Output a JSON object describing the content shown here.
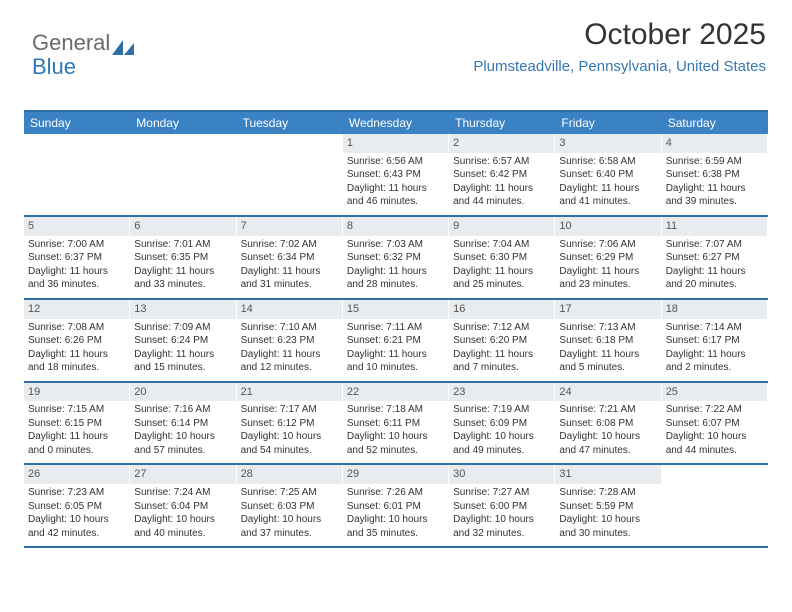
{
  "logo": {
    "text_gray": "General",
    "text_blue": "Blue",
    "icon_color": "#2f6fa8"
  },
  "header": {
    "month_title": "October 2025",
    "location": "Plumsteadville, Pennsylvania, United States"
  },
  "colors": {
    "header_bg": "#3b82c4",
    "border": "#2f6fa8",
    "day_number_bg": "#e9ecef",
    "text": "#333333",
    "location_text": "#3778b6"
  },
  "day_names": [
    "Sunday",
    "Monday",
    "Tuesday",
    "Wednesday",
    "Thursday",
    "Friday",
    "Saturday"
  ],
  "weeks": [
    [
      {
        "day": "",
        "sunrise": "",
        "sunset": "",
        "daylight": ""
      },
      {
        "day": "",
        "sunrise": "",
        "sunset": "",
        "daylight": ""
      },
      {
        "day": "",
        "sunrise": "",
        "sunset": "",
        "daylight": ""
      },
      {
        "day": "1",
        "sunrise": "Sunrise: 6:56 AM",
        "sunset": "Sunset: 6:43 PM",
        "daylight": "Daylight: 11 hours and 46 minutes."
      },
      {
        "day": "2",
        "sunrise": "Sunrise: 6:57 AM",
        "sunset": "Sunset: 6:42 PM",
        "daylight": "Daylight: 11 hours and 44 minutes."
      },
      {
        "day": "3",
        "sunrise": "Sunrise: 6:58 AM",
        "sunset": "Sunset: 6:40 PM",
        "daylight": "Daylight: 11 hours and 41 minutes."
      },
      {
        "day": "4",
        "sunrise": "Sunrise: 6:59 AM",
        "sunset": "Sunset: 6:38 PM",
        "daylight": "Daylight: 11 hours and 39 minutes."
      }
    ],
    [
      {
        "day": "5",
        "sunrise": "Sunrise: 7:00 AM",
        "sunset": "Sunset: 6:37 PM",
        "daylight": "Daylight: 11 hours and 36 minutes."
      },
      {
        "day": "6",
        "sunrise": "Sunrise: 7:01 AM",
        "sunset": "Sunset: 6:35 PM",
        "daylight": "Daylight: 11 hours and 33 minutes."
      },
      {
        "day": "7",
        "sunrise": "Sunrise: 7:02 AM",
        "sunset": "Sunset: 6:34 PM",
        "daylight": "Daylight: 11 hours and 31 minutes."
      },
      {
        "day": "8",
        "sunrise": "Sunrise: 7:03 AM",
        "sunset": "Sunset: 6:32 PM",
        "daylight": "Daylight: 11 hours and 28 minutes."
      },
      {
        "day": "9",
        "sunrise": "Sunrise: 7:04 AM",
        "sunset": "Sunset: 6:30 PM",
        "daylight": "Daylight: 11 hours and 25 minutes."
      },
      {
        "day": "10",
        "sunrise": "Sunrise: 7:06 AM",
        "sunset": "Sunset: 6:29 PM",
        "daylight": "Daylight: 11 hours and 23 minutes."
      },
      {
        "day": "11",
        "sunrise": "Sunrise: 7:07 AM",
        "sunset": "Sunset: 6:27 PM",
        "daylight": "Daylight: 11 hours and 20 minutes."
      }
    ],
    [
      {
        "day": "12",
        "sunrise": "Sunrise: 7:08 AM",
        "sunset": "Sunset: 6:26 PM",
        "daylight": "Daylight: 11 hours and 18 minutes."
      },
      {
        "day": "13",
        "sunrise": "Sunrise: 7:09 AM",
        "sunset": "Sunset: 6:24 PM",
        "daylight": "Daylight: 11 hours and 15 minutes."
      },
      {
        "day": "14",
        "sunrise": "Sunrise: 7:10 AM",
        "sunset": "Sunset: 6:23 PM",
        "daylight": "Daylight: 11 hours and 12 minutes."
      },
      {
        "day": "15",
        "sunrise": "Sunrise: 7:11 AM",
        "sunset": "Sunset: 6:21 PM",
        "daylight": "Daylight: 11 hours and 10 minutes."
      },
      {
        "day": "16",
        "sunrise": "Sunrise: 7:12 AM",
        "sunset": "Sunset: 6:20 PM",
        "daylight": "Daylight: 11 hours and 7 minutes."
      },
      {
        "day": "17",
        "sunrise": "Sunrise: 7:13 AM",
        "sunset": "Sunset: 6:18 PM",
        "daylight": "Daylight: 11 hours and 5 minutes."
      },
      {
        "day": "18",
        "sunrise": "Sunrise: 7:14 AM",
        "sunset": "Sunset: 6:17 PM",
        "daylight": "Daylight: 11 hours and 2 minutes."
      }
    ],
    [
      {
        "day": "19",
        "sunrise": "Sunrise: 7:15 AM",
        "sunset": "Sunset: 6:15 PM",
        "daylight": "Daylight: 11 hours and 0 minutes."
      },
      {
        "day": "20",
        "sunrise": "Sunrise: 7:16 AM",
        "sunset": "Sunset: 6:14 PM",
        "daylight": "Daylight: 10 hours and 57 minutes."
      },
      {
        "day": "21",
        "sunrise": "Sunrise: 7:17 AM",
        "sunset": "Sunset: 6:12 PM",
        "daylight": "Daylight: 10 hours and 54 minutes."
      },
      {
        "day": "22",
        "sunrise": "Sunrise: 7:18 AM",
        "sunset": "Sunset: 6:11 PM",
        "daylight": "Daylight: 10 hours and 52 minutes."
      },
      {
        "day": "23",
        "sunrise": "Sunrise: 7:19 AM",
        "sunset": "Sunset: 6:09 PM",
        "daylight": "Daylight: 10 hours and 49 minutes."
      },
      {
        "day": "24",
        "sunrise": "Sunrise: 7:21 AM",
        "sunset": "Sunset: 6:08 PM",
        "daylight": "Daylight: 10 hours and 47 minutes."
      },
      {
        "day": "25",
        "sunrise": "Sunrise: 7:22 AM",
        "sunset": "Sunset: 6:07 PM",
        "daylight": "Daylight: 10 hours and 44 minutes."
      }
    ],
    [
      {
        "day": "26",
        "sunrise": "Sunrise: 7:23 AM",
        "sunset": "Sunset: 6:05 PM",
        "daylight": "Daylight: 10 hours and 42 minutes."
      },
      {
        "day": "27",
        "sunrise": "Sunrise: 7:24 AM",
        "sunset": "Sunset: 6:04 PM",
        "daylight": "Daylight: 10 hours and 40 minutes."
      },
      {
        "day": "28",
        "sunrise": "Sunrise: 7:25 AM",
        "sunset": "Sunset: 6:03 PM",
        "daylight": "Daylight: 10 hours and 37 minutes."
      },
      {
        "day": "29",
        "sunrise": "Sunrise: 7:26 AM",
        "sunset": "Sunset: 6:01 PM",
        "daylight": "Daylight: 10 hours and 35 minutes."
      },
      {
        "day": "30",
        "sunrise": "Sunrise: 7:27 AM",
        "sunset": "Sunset: 6:00 PM",
        "daylight": "Daylight: 10 hours and 32 minutes."
      },
      {
        "day": "31",
        "sunrise": "Sunrise: 7:28 AM",
        "sunset": "Sunset: 5:59 PM",
        "daylight": "Daylight: 10 hours and 30 minutes."
      },
      {
        "day": "",
        "sunrise": "",
        "sunset": "",
        "daylight": ""
      }
    ]
  ]
}
